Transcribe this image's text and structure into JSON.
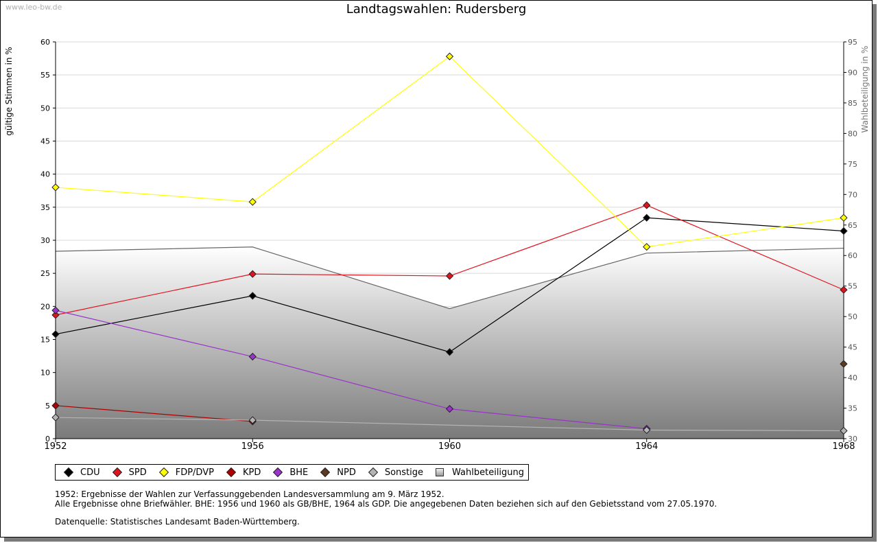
{
  "watermark": "www.leo-bw.de",
  "chart_data": {
    "type": "line",
    "title": "Landtagswahlen: Rudersberg",
    "ylabel": "gültige Stimmen in %",
    "y2label": "Wahlbeteiligung in %",
    "x": [
      "1952",
      "1956",
      "1960",
      "1964",
      "1968"
    ],
    "ylim": [
      0,
      60
    ],
    "y2lim": [
      30,
      95
    ],
    "yticks": [
      0,
      5,
      10,
      15,
      20,
      25,
      30,
      35,
      40,
      45,
      50,
      55,
      60
    ],
    "y2ticks": [
      30,
      35,
      40,
      45,
      50,
      55,
      60,
      65,
      70,
      75,
      80,
      85,
      90,
      95
    ],
    "grid": true,
    "legend_position": "bottom",
    "series": [
      {
        "name": "CDU",
        "color": "#000000",
        "values": [
          15.8,
          21.6,
          13.1,
          33.4,
          31.4
        ]
      },
      {
        "name": "SPD",
        "color": "#e0141e",
        "values": [
          18.7,
          24.9,
          24.6,
          35.3,
          22.5
        ]
      },
      {
        "name": "FDP/DVP",
        "color": "#ffff00",
        "values": [
          38.0,
          35.8,
          57.8,
          29.0,
          33.4
        ]
      },
      {
        "name": "KPD",
        "color": "#b00000",
        "values": [
          5.0,
          2.6,
          null,
          null,
          null
        ]
      },
      {
        "name": "BHE",
        "color": "#9933cc",
        "values": [
          19.4,
          12.4,
          4.5,
          1.5,
          null
        ]
      },
      {
        "name": "NPD",
        "color": "#5c3a21",
        "values": [
          null,
          null,
          null,
          null,
          11.3
        ]
      },
      {
        "name": "Sonstige",
        "color": "#b4b4b4",
        "values": [
          3.2,
          2.8,
          null,
          1.3,
          1.2
        ]
      },
      {
        "name": "Wahlbeteiligung",
        "axis": "right",
        "type": "area",
        "color": "#8c8c8c",
        "values": [
          60.7,
          61.4,
          51.3,
          60.4,
          61.2
        ]
      }
    ]
  },
  "notes": {
    "line1": "1952: Ergebnisse der Wahlen zur Verfassunggebenden Landesversammlung am 9. März 1952.",
    "line2": "Alle Ergebnisse ohne Briefwähler. BHE: 1956 und 1960 als GB/BHE, 1964 als GDP. Die angegebenen Daten beziehen sich auf den Gebietsstand vom 27.05.1970.",
    "line3": "Datenquelle: Statistisches Landesamt Baden-Württemberg."
  }
}
